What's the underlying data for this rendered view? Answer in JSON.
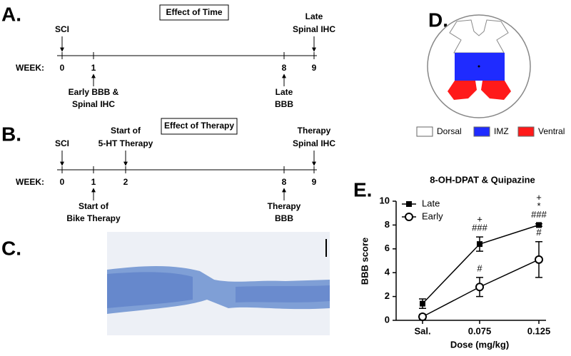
{
  "panel_a": {
    "label": "A.",
    "title": "Effect of Time",
    "axis_label": "WEEK:",
    "weeks": [
      0,
      1,
      8,
      9
    ],
    "events_above": [
      [
        "SCI"
      ],
      null,
      null,
      [
        "Late",
        "Spinal IHC"
      ]
    ],
    "events_below": [
      null,
      [
        "Early BBB &",
        "Spinal IHC"
      ],
      [
        "Late",
        "BBB"
      ],
      null
    ]
  },
  "panel_b": {
    "label": "B.",
    "title": "Effect of Therapy",
    "axis_label": "WEEK:",
    "weeks": [
      0,
      1,
      2,
      8,
      9
    ],
    "events_above": [
      [
        "SCI"
      ],
      null,
      [
        "Start of",
        "5-HT Therapy"
      ],
      null,
      [
        "Therapy",
        "Spinal IHC"
      ]
    ],
    "events_below": [
      null,
      [
        "Start of",
        "Bike Therapy"
      ],
      null,
      [
        "Therapy",
        "BBB"
      ],
      null
    ]
  },
  "panel_c": {
    "label": "C."
  },
  "panel_d": {
    "label": "D.",
    "legend": [
      {
        "name": "Dorsal",
        "color": "#ffffff"
      },
      {
        "name": "IMZ",
        "color": "#1f2bff"
      },
      {
        "name": "Ventral",
        "color": "#ff1a1a"
      }
    ]
  },
  "chart_data": {
    "type": "line",
    "panel_label": "E.",
    "title": "8-OH-DPAT & Quipazine",
    "x_label": "Dose (mg/kg)",
    "y_label": "BBB score",
    "categories": [
      "Sal.",
      "0.075",
      "0.125"
    ],
    "series": [
      {
        "name": "Late",
        "color": "#000000",
        "marker": "square",
        "values": [
          1.4,
          6.4,
          8.0
        ],
        "errors": [
          0.4,
          0.6,
          0.1
        ],
        "annotations": [
          null,
          [
            "+",
            "###"
          ],
          [
            "+",
            "*",
            "###"
          ]
        ]
      },
      {
        "name": "Early",
        "color": "#000000",
        "marker": "circle",
        "values": [
          0.3,
          2.8,
          5.1
        ],
        "errors": [
          0.2,
          0.8,
          1.5
        ],
        "annotations": [
          null,
          [
            "#"
          ],
          [
            "#"
          ]
        ]
      }
    ],
    "ylim": [
      0,
      10
    ],
    "yticks": [
      0,
      2,
      4,
      6,
      8,
      10
    ],
    "legend": "top-left"
  }
}
